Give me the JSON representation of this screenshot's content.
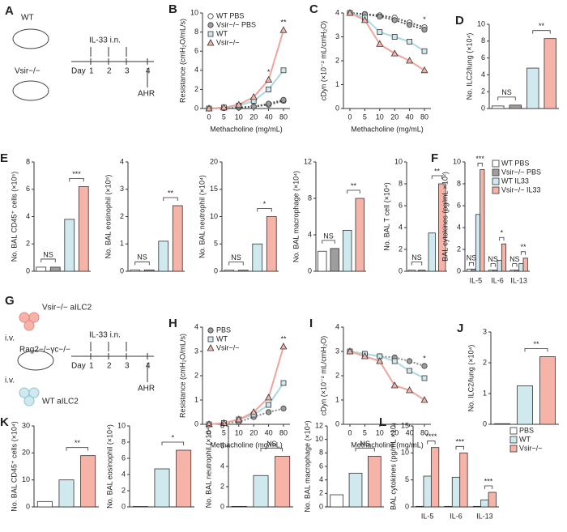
{
  "diagrams": [
    {
      "panel": "A",
      "labels": [
        "WT",
        "Vsir−/−"
      ],
      "day_label": "Day",
      "days": [
        "1",
        "2",
        "3",
        "4"
      ],
      "treatment": "IL-33 i.n.",
      "readout": "AHR"
    },
    {
      "panel": "G",
      "cells": [
        "Vsir−/− aILC2",
        "WT aILC2"
      ],
      "route": [
        "i.v.",
        "i.v."
      ],
      "host": "Rag2−/−γc−/−",
      "day_label": "Day",
      "days": [
        "1",
        "2",
        "3",
        "4"
      ],
      "treatment": "IL-33 i.n.",
      "readout": "AHR"
    }
  ],
  "chart_data": [
    {
      "type": "line",
      "panel": "B",
      "y_label": "Resistance (cmH₂O/mL/s)",
      "x_label": "Methacholine (mg/mL)",
      "categories": [
        "0",
        "5",
        "10",
        "20",
        "40",
        "80"
      ],
      "ylim": [
        0,
        10
      ],
      "yticks": [
        0,
        2,
        4,
        6,
        8,
        10
      ],
      "legend": "top-left",
      "series": [
        {
          "name": "WT PBS",
          "color": "#ffffff",
          "line_color": "#555555",
          "marker": "circle",
          "dash": true,
          "values": [
            0,
            0.05,
            0.1,
            0.2,
            0.4,
            0.8
          ]
        },
        {
          "name": "Vsir−/− PBS",
          "color": "#9e9e9e",
          "line_color": "#555555",
          "marker": "circle",
          "dash": true,
          "values": [
            0,
            0.05,
            0.1,
            0.2,
            0.5,
            0.9
          ]
        },
        {
          "name": "WT",
          "color": "#cfe9ee",
          "line_color": "#a9d9e2",
          "marker": "square",
          "values": [
            0,
            0.1,
            0.3,
            0.8,
            2.0,
            4.0
          ]
        },
        {
          "name": "Vsir−/−",
          "color": "#f6b3a8",
          "line_color": "#f0a49a",
          "marker": "triangle",
          "values": [
            0,
            0.1,
            0.4,
            1.2,
            3.0,
            8.2
          ]
        }
      ],
      "annotations": [
        "*",
        "**"
      ]
    },
    {
      "type": "line",
      "panel": "C",
      "y_label": "cDyn (×10⁻² mL/cmH₂O)",
      "x_label": "Methacholine (mg/mL)",
      "categories": [
        "0",
        "5",
        "10",
        "20",
        "40",
        "80"
      ],
      "ylim": [
        0,
        4
      ],
      "yticks": [
        0,
        1,
        2,
        3,
        4
      ],
      "series": [
        {
          "color": "#ffffff",
          "line_color": "#555555",
          "marker": "circle",
          "dash": true,
          "values": [
            4,
            3.95,
            3.9,
            3.8,
            3.6,
            3.4
          ]
        },
        {
          "color": "#9e9e9e",
          "line_color": "#555555",
          "marker": "circle",
          "dash": true,
          "values": [
            4,
            3.95,
            3.85,
            3.7,
            3.5,
            3.3
          ]
        },
        {
          "color": "#cfe9ee",
          "line_color": "#a9d9e2",
          "marker": "square",
          "values": [
            4,
            3.8,
            3.2,
            3.0,
            2.8,
            2.4
          ]
        },
        {
          "color": "#f6b3a8",
          "line_color": "#f0a49a",
          "marker": "triangle",
          "values": [
            4,
            3.7,
            2.7,
            2.3,
            2.0,
            1.6
          ]
        }
      ],
      "annotations": [
        "*"
      ]
    },
    {
      "type": "bar",
      "panel": "D",
      "y_label": "No. ILC2/lung (×10⁴)",
      "categories": [
        null,
        null,
        null,
        null
      ],
      "values": [
        0.3,
        0.4,
        4.8,
        8.3
      ],
      "colors": [
        "#ffffff",
        "#9e9e9e",
        "#cfe9ee",
        "#f6b3a8"
      ],
      "ylim": [
        0,
        10
      ],
      "yticks": [
        0,
        2,
        4,
        6,
        8,
        10
      ],
      "annotations": [
        "NS",
        "**"
      ]
    },
    {
      "type": "bar",
      "panel": "E",
      "y_label": "No. BAL CD45⁺ cells (×10⁵)",
      "categories": [
        null,
        null,
        null,
        null
      ],
      "values": [
        0.3,
        0.3,
        3.8,
        6.2
      ],
      "colors": [
        "#ffffff",
        "#9e9e9e",
        "#cfe9ee",
        "#f6b3a8"
      ],
      "ylim": [
        0,
        8
      ],
      "yticks": [
        0,
        2,
        4,
        6,
        8
      ],
      "annotations": [
        "NS",
        "***"
      ]
    },
    {
      "type": "bar",
      "y_label": "No. BAL eosinophil (×10⁵)",
      "categories": [
        null,
        null,
        null,
        null
      ],
      "values": [
        0.05,
        0.05,
        1.1,
        2.4
      ],
      "colors": [
        "#ffffff",
        "#9e9e9e",
        "#cfe9ee",
        "#f6b3a8"
      ],
      "ylim": [
        0,
        4
      ],
      "yticks": [
        0,
        1,
        2,
        3,
        4
      ],
      "annotations": [
        "NS",
        "**"
      ]
    },
    {
      "type": "bar",
      "y_label": "No. BAL neutrophil (×10⁴)",
      "categories": [
        null,
        null,
        null,
        null
      ],
      "values": [
        0.2,
        0.2,
        5,
        10
      ],
      "colors": [
        "#ffffff",
        "#9e9e9e",
        "#cfe9ee",
        "#f6b3a8"
      ],
      "ylim": [
        0,
        20
      ],
      "yticks": [
        0,
        5,
        10,
        15,
        20
      ],
      "annotations": [
        "NS",
        "*"
      ]
    },
    {
      "type": "bar",
      "y_label": "No. BAL macrophage (×10⁴)",
      "categories": [
        null,
        null,
        null,
        null
      ],
      "values": [
        2.2,
        2.5,
        4.5,
        8
      ],
      "colors": [
        "#ffffff",
        "#9e9e9e",
        "#cfe9ee",
        "#f6b3a8"
      ],
      "ylim": [
        0,
        12
      ],
      "yticks": [
        0,
        4,
        8,
        12
      ],
      "annotations": [
        "NS",
        "**"
      ]
    },
    {
      "type": "bar",
      "y_label": "No. BAL T cell (×10⁴)",
      "categories": [
        null,
        null,
        null,
        null
      ],
      "values": [
        0.1,
        0.1,
        3.5,
        8
      ],
      "colors": [
        "#ffffff",
        "#9e9e9e",
        "#cfe9ee",
        "#f6b3a8"
      ],
      "ylim": [
        0,
        10
      ],
      "yticks": [
        0,
        2,
        4,
        6,
        8,
        10
      ],
      "annotations": [
        "NS",
        "**"
      ]
    },
    {
      "type": "grouped_bar",
      "panel": "F",
      "y_label": "BAL cytokines (pg/mL ×10²)",
      "categories": [
        "IL-5",
        "IL-6",
        "IL-13"
      ],
      "ylim": [
        0,
        10
      ],
      "yticks": [
        0,
        2,
        4,
        6,
        8,
        10
      ],
      "legend": "top-right",
      "series": [
        {
          "name": "WT PBS",
          "color": "#ffffff",
          "values": [
            0.2,
            0.1,
            0.1
          ]
        },
        {
          "name": "Vsir−/− PBS",
          "color": "#9e9e9e",
          "values": [
            0.2,
            0.1,
            0.1
          ]
        },
        {
          "name": "WT IL33",
          "color": "#cfe9ee",
          "values": [
            5.2,
            1.0,
            0.7
          ]
        },
        {
          "name": "Vsir−/− IL33",
          "color": "#f6b3a8",
          "values": [
            9.3,
            2.5,
            1.2
          ]
        }
      ],
      "annotations": [
        "NS",
        "***",
        "NS",
        "*",
        "NS",
        "**"
      ]
    },
    {
      "type": "line",
      "panel": "H",
      "y_label": "Resistance (cmH₂O/mL/s)",
      "x_label": "Methacholine (mg/mL)",
      "categories": [
        "0",
        "5",
        "10",
        "20",
        "40",
        "80"
      ],
      "ylim": [
        0,
        4
      ],
      "yticks": [
        0,
        1,
        2,
        3,
        4
      ],
      "legend": "top-left",
      "series": [
        {
          "name": "PBS",
          "color": "#9e9e9e",
          "line_color": "#888888",
          "marker": "circle",
          "dash": true,
          "values": [
            0,
            0.05,
            0.1,
            0.3,
            0.5,
            0.65
          ]
        },
        {
          "name": "WT",
          "color": "#cfe9ee",
          "line_color": "#a9d9e2",
          "marker": "square",
          "values": [
            0,
            0.05,
            0.2,
            0.4,
            0.8,
            1.7
          ]
        },
        {
          "name": "Vsir−/−",
          "color": "#f6b3a8",
          "line_color": "#f0a49a",
          "marker": "triangle",
          "values": [
            0,
            0.05,
            0.2,
            0.5,
            1.1,
            3.2
          ]
        }
      ],
      "annotations": [
        "**"
      ]
    },
    {
      "type": "line",
      "panel": "I",
      "y_label": "cDyn (×10⁻² mL/cmH₂O)",
      "x_label": "Methacholine (mg/mL)",
      "categories": [
        "0",
        "5",
        "10",
        "20",
        "40",
        "80"
      ],
      "ylim": [
        0,
        4
      ],
      "yticks": [
        0,
        1,
        2,
        3,
        4
      ],
      "series": [
        {
          "color": "#9e9e9e",
          "line_color": "#888888",
          "marker": "circle",
          "dash": true,
          "values": [
            3,
            2.9,
            2.8,
            2.75,
            2.6,
            2.4
          ]
        },
        {
          "color": "#cfe9ee",
          "line_color": "#a9d9e2",
          "marker": "square",
          "values": [
            3,
            2.9,
            2.8,
            2.6,
            2.2,
            1.9
          ]
        },
        {
          "color": "#f6b3a8",
          "line_color": "#f0a49a",
          "marker": "triangle",
          "values": [
            3,
            2.8,
            2.6,
            1.6,
            1.4,
            1.0
          ]
        }
      ],
      "annotations": [
        "*"
      ]
    },
    {
      "type": "bar",
      "panel": "J",
      "y_label": "No. ILC2/lung (×10⁴)",
      "categories": [
        null,
        null,
        null
      ],
      "values": [
        0.02,
        1.25,
        2.2
      ],
      "colors": [
        "#ffffff",
        "#cfe9ee",
        "#f6b3a8"
      ],
      "ylim": [
        0,
        3
      ],
      "yticks": [
        0,
        1,
        2,
        3
      ],
      "annotations": [
        "**"
      ]
    },
    {
      "type": "bar",
      "panel": "K",
      "y_label": "No. BAL CD45⁺ cells (×10⁴)",
      "categories": [
        null,
        null,
        null
      ],
      "values": [
        2,
        10,
        19
      ],
      "colors": [
        "#ffffff",
        "#cfe9ee",
        "#f6b3a8"
      ],
      "ylim": [
        0,
        30
      ],
      "yticks": [
        0,
        10,
        20,
        30
      ],
      "annotations": [
        "**"
      ]
    },
    {
      "type": "bar",
      "y_label": "No. BAL eosinophil (×10⁴)",
      "categories": [
        null,
        null,
        null
      ],
      "values": [
        0.05,
        4.7,
        7
      ],
      "colors": [
        "#ffffff",
        "#cfe9ee",
        "#f6b3a8"
      ],
      "ylim": [
        0,
        10
      ],
      "yticks": [
        0,
        2,
        4,
        6,
        8,
        10
      ],
      "annotations": [
        "*"
      ]
    },
    {
      "type": "bar",
      "y_label": "No. BAL neutrophil (×10⁴)",
      "categories": [
        null,
        null,
        null
      ],
      "values": [
        0.05,
        3.1,
        5
      ],
      "colors": [
        "#ffffff",
        "#cfe9ee",
        "#f6b3a8"
      ],
      "ylim": [
        0,
        8
      ],
      "yticks": [
        0,
        2,
        4,
        6,
        8
      ],
      "annotations": [
        "NS"
      ]
    },
    {
      "type": "bar",
      "y_label": "No. BAL macrophage (×10⁴)",
      "categories": [
        null,
        null,
        null
      ],
      "values": [
        1.8,
        5,
        7.5
      ],
      "colors": [
        "#ffffff",
        "#cfe9ee",
        "#f6b3a8"
      ],
      "ylim": [
        0,
        12
      ],
      "yticks": [
        0,
        2,
        4,
        6,
        8,
        10,
        12
      ],
      "annotations": [
        "NS"
      ]
    },
    {
      "type": "grouped_bar",
      "panel": "L",
      "y_label": "BAL cytokines (pg/mL ×10)",
      "categories": [
        "IL-5",
        "IL-6",
        "IL-13"
      ],
      "ylim": [
        0,
        15
      ],
      "yticks": [
        0,
        5,
        10,
        15
      ],
      "legend": "right",
      "series": [
        {
          "name": "PBS",
          "color": "#ffffff",
          "values": [
            0.1,
            0.1,
            0.1
          ]
        },
        {
          "name": "WT",
          "color": "#cfe9ee",
          "values": [
            5.7,
            5.5,
            1.3
          ]
        },
        {
          "name": "Vsir−/−",
          "color": "#f6b3a8",
          "values": [
            11,
            10,
            2.7
          ]
        }
      ],
      "annotations": [
        "****",
        "***",
        "***"
      ]
    }
  ]
}
